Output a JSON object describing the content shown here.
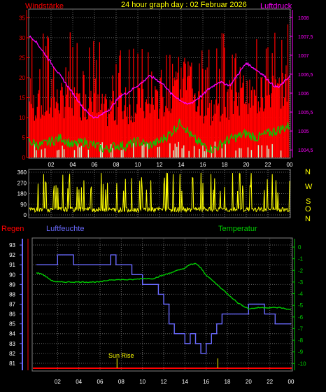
{
  "header": {
    "wind_label": "Windstärke",
    "title": "24 hour graph day : 02 Februar 2026",
    "pressure_label": "Luftdruck"
  },
  "dir_letters": [
    "N",
    "W",
    "S",
    "O",
    "N"
  ],
  "legend": {
    "rain": "Regen",
    "humidity": "Luftfeuchte",
    "temperature": "Temperatur"
  },
  "sunrise_label": "Sun Rise",
  "colors": {
    "wind": "#ff0000",
    "gust_fill": "#ff0000",
    "avg_wind": "#00cc00",
    "pressure": "#ff00ff",
    "calm": "#c8f0c8",
    "direction": "#ffff00",
    "humidity": "#6a6aff",
    "temperature": "#00cc00",
    "rain": "#ff0000",
    "grid": "#606060",
    "text_title": "#ffff00"
  },
  "chart_data": [
    {
      "type": "line",
      "title": "24 hour graph day : 02 Februar 2026",
      "x_ticks": [
        "02",
        "04",
        "06",
        "08",
        "10",
        "12",
        "14",
        "16",
        "18",
        "20",
        "22",
        "00"
      ],
      "y_left_label": "Windstärke",
      "y_left_ticks": [
        0,
        5,
        10,
        15,
        20,
        25,
        30,
        35
      ],
      "ylim_left": [
        0,
        37
      ],
      "y_right_label": "Luftdruck",
      "y_right_ticks": [
        "1004,5",
        "1005",
        "1005,5",
        "1006",
        "1006,5",
        "1007",
        "1007,5",
        "1008"
      ],
      "ylim_right": [
        1004.3,
        1008.2
      ],
      "series": [
        {
          "name": "Luftdruck",
          "axis": "right",
          "x": [
            0,
            0.5,
            1,
            1.5,
            2,
            2.5,
            3,
            3.5,
            4,
            4.5,
            5,
            5.5,
            6,
            6.5,
            7,
            7.5,
            8,
            8.5,
            9,
            9.5,
            10,
            10.5,
            11,
            11.5,
            12,
            12.5,
            13,
            13.5,
            14,
            14.5,
            15,
            15.5,
            16,
            16.5,
            17,
            17.5,
            18,
            18.5,
            19,
            19.5,
            20,
            20.5,
            21,
            21.5,
            22,
            22.5,
            23,
            23.5,
            24
          ],
          "values": [
            1007.5,
            1007.4,
            1007.2,
            1007.0,
            1006.8,
            1006.6,
            1006.4,
            1006.2,
            1006.0,
            1005.8,
            1005.6,
            1005.45,
            1005.35,
            1005.4,
            1005.5,
            1005.6,
            1005.8,
            1005.95,
            1006.0,
            1006.1,
            1006.2,
            1006.3,
            1006.45,
            1006.4,
            1006.3,
            1006.2,
            1006.0,
            1005.9,
            1005.8,
            1005.7,
            1005.75,
            1005.85,
            1005.95,
            1006.1,
            1006.2,
            1006.3,
            1006.25,
            1006.2,
            1006.4,
            1006.6,
            1006.8,
            1006.7,
            1006.6,
            1006.5,
            1006.35,
            1006.2,
            1006.15,
            1006.3,
            1006.45
          ]
        },
        {
          "name": "Wind avg",
          "axis": "left",
          "x": [
            0,
            1,
            2,
            3,
            4,
            5,
            6,
            7,
            8,
            9,
            10,
            11,
            12,
            13,
            14,
            15,
            16,
            17,
            18,
            19,
            20,
            21,
            22,
            23,
            24
          ],
          "values": [
            4,
            3,
            4,
            5,
            3,
            4,
            3,
            2,
            3,
            3,
            4,
            3,
            4,
            6,
            9,
            5,
            3,
            2,
            4,
            5,
            6,
            5,
            6,
            7,
            8
          ]
        }
      ]
    },
    {
      "type": "scatter",
      "title": "",
      "x_ticks": [
        "02",
        "04",
        "06",
        "08",
        "10",
        "12",
        "14",
        "16",
        "18",
        "20",
        "22",
        "00"
      ],
      "y_ticks": [
        0,
        90,
        180,
        270,
        360
      ],
      "ylim": [
        0,
        360
      ]
    },
    {
      "type": "line",
      "title": "",
      "x_ticks": [
        "02",
        "04",
        "06",
        "08",
        "10",
        "12",
        "14",
        "16",
        "18",
        "20",
        "22",
        "00"
      ],
      "y_left_label": "Luftfeuchte",
      "y_left_ticks": [
        81,
        82,
        83,
        84,
        85,
        86,
        87,
        88,
        89,
        90,
        91,
        92,
        93
      ],
      "ylim_left": [
        80.5,
        93.5
      ],
      "y_right_label": "Temperatur",
      "y_right_ticks": [
        0,
        -1,
        -2,
        -3,
        -4,
        -5,
        -6,
        -7,
        -8,
        -9,
        -10
      ],
      "ylim_right": [
        -10.4,
        0.6
      ],
      "series": [
        {
          "name": "Luftfeuchte",
          "axis": "left",
          "x": [
            0,
            2,
            2,
            3.5,
            3.5,
            7,
            7,
            7.5,
            7.5,
            9,
            9,
            10,
            10,
            11.5,
            11.5,
            12,
            12,
            12.5,
            12.5,
            13,
            13,
            14,
            14,
            14.5,
            14.5,
            15,
            15,
            15.5,
            15.5,
            16,
            16,
            16.5,
            16.5,
            17,
            17,
            17.5,
            17.5,
            19,
            19,
            20,
            20,
            21.5,
            21.5,
            22.5,
            22.5,
            24
          ],
          "values": [
            91,
            91,
            92,
            92,
            91,
            91,
            92,
            92,
            91,
            91,
            90,
            90,
            89,
            89,
            88,
            88,
            87,
            87,
            85,
            85,
            84,
            84,
            83,
            83,
            84,
            84,
            83,
            83,
            82,
            82,
            83,
            83,
            84,
            84,
            85,
            85,
            86,
            86,
            86,
            86,
            87,
            87,
            86,
            86,
            85,
            85
          ]
        },
        {
          "name": "Temperatur",
          "axis": "right",
          "x": [
            0,
            0.5,
            1,
            1.5,
            2,
            3,
            4,
            5,
            6,
            7,
            8,
            9,
            10,
            11,
            12,
            13,
            14,
            14.5,
            15,
            15.5,
            16,
            17,
            18,
            19,
            20,
            21,
            22,
            23,
            24
          ],
          "values": [
            -2.2,
            -2.3,
            -2.6,
            -2.9,
            -3.0,
            -3.0,
            -3.0,
            -3.0,
            -3.0,
            -2.8,
            -2.8,
            -2.8,
            -2.7,
            -2.7,
            -2.4,
            -2.1,
            -1.8,
            -1.5,
            -1.4,
            -1.8,
            -2.4,
            -3.2,
            -4.0,
            -4.8,
            -5.3,
            -5.2,
            -5.2,
            -5.2,
            -5.4
          ]
        }
      ]
    }
  ]
}
